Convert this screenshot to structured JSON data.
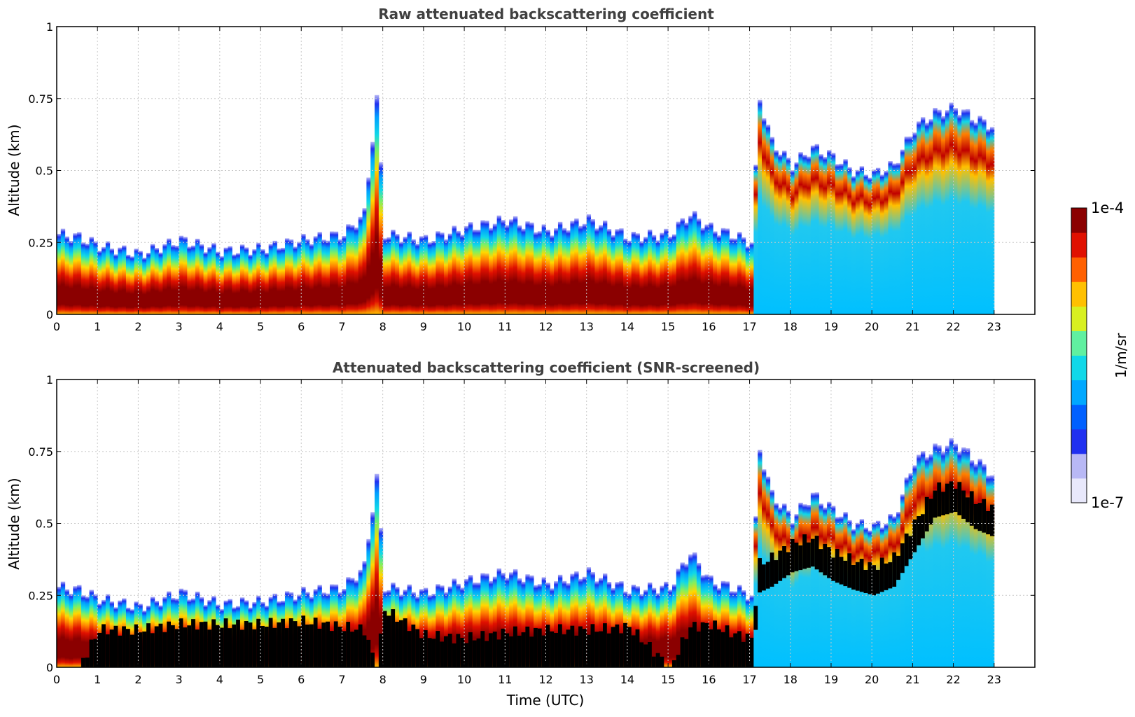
{
  "chart_data": [
    {
      "type": "heatmap",
      "title": "Raw attenuated backscattering coefficient",
      "xlabel": "",
      "ylabel": "Altitude (km)",
      "xlim": [
        0,
        24
      ],
      "ylim": [
        0,
        1
      ],
      "xticks": [
        "0",
        "1",
        "2",
        "3",
        "4",
        "5",
        "6",
        "7",
        "8",
        "9",
        "10",
        "11",
        "12",
        "13",
        "14",
        "15",
        "16",
        "17",
        "18",
        "19",
        "20",
        "21",
        "22",
        "23"
      ],
      "yticks": [
        "0",
        "0.25",
        "0.5",
        "0.75",
        "1"
      ],
      "grid": true,
      "profile": {
        "time": [
          0,
          0.5,
          1,
          2,
          3,
          4,
          5,
          6,
          7,
          7.5,
          7.8,
          8,
          9,
          10,
          11,
          12,
          13,
          14,
          15,
          15.5,
          16,
          16.5,
          17,
          17.2,
          17.5,
          18,
          18.5,
          19,
          19.5,
          20,
          20.5,
          21,
          21.5,
          22,
          22.5,
          23
        ],
        "signal_top_km": [
          0.28,
          0.27,
          0.24,
          0.21,
          0.26,
          0.22,
          0.23,
          0.26,
          0.28,
          0.35,
          0.75,
          0.28,
          0.26,
          0.3,
          0.33,
          0.29,
          0.33,
          0.27,
          0.28,
          0.35,
          0.3,
          0.28,
          0.25,
          0.75,
          0.6,
          0.52,
          0.58,
          0.55,
          0.5,
          0.49,
          0.52,
          0.65,
          0.7,
          0.72,
          0.68,
          0.65
        ],
        "max_backscatter_layer_km": [
          0.02,
          0.05,
          0.08,
          0.08,
          0.08,
          0.09,
          0.09,
          0.1,
          0.12,
          0.15,
          0.4,
          0.1,
          0.08,
          0.08,
          0.07,
          0.08,
          0.08,
          0.08,
          0.05,
          0.1,
          0.1,
          0.08,
          0.05,
          0.38,
          0.4,
          0.42,
          0.45,
          0.4,
          0.37,
          0.35,
          0.38,
          0.5,
          0.58,
          0.6,
          0.55,
          0.52
        ]
      }
    },
    {
      "type": "heatmap",
      "title": "Attenuated backscattering coefficient (SNR-screened)",
      "xlabel": "Time (UTC)",
      "ylabel": "Altitude (km)",
      "xlim": [
        0,
        24
      ],
      "ylim": [
        0,
        1
      ],
      "xticks": [
        "0",
        "1",
        "2",
        "3",
        "4",
        "5",
        "6",
        "7",
        "8",
        "9",
        "10",
        "11",
        "12",
        "13",
        "14",
        "15",
        "16",
        "17",
        "18",
        "19",
        "20",
        "21",
        "22",
        "23"
      ],
      "yticks": [
        "0",
        "0.25",
        "0.5",
        "0.75",
        "1"
      ],
      "grid": true,
      "profile": {
        "time": [
          0,
          0.5,
          1,
          2,
          3,
          4,
          5,
          6,
          7,
          7.5,
          7.8,
          8,
          9,
          10,
          11,
          12,
          13,
          14,
          15,
          15.5,
          16,
          16.5,
          17,
          17.2,
          17.5,
          18,
          18.5,
          19,
          19.5,
          20,
          20.5,
          21,
          21.5,
          22,
          22.5,
          23
        ],
        "signal_top_km": [
          0.28,
          0.27,
          0.24,
          0.21,
          0.26,
          0.22,
          0.23,
          0.26,
          0.28,
          0.35,
          0.66,
          0.28,
          0.26,
          0.3,
          0.33,
          0.29,
          0.33,
          0.27,
          0.28,
          0.4,
          0.3,
          0.28,
          0.25,
          0.76,
          0.6,
          0.52,
          0.6,
          0.55,
          0.5,
          0.49,
          0.52,
          0.72,
          0.76,
          0.78,
          0.72,
          0.66
        ],
        "screened_core_km": [
          0,
          0,
          0.13,
          0.13,
          0.15,
          0.15,
          0.15,
          0.16,
          0.14,
          0.13,
          0,
          0.2,
          0.11,
          0.1,
          0.12,
          0.13,
          0.13,
          0.14,
          0,
          0.14,
          0.15,
          0.12,
          0.1,
          0.36,
          0.38,
          0.43,
          0.45,
          0.4,
          0.37,
          0.35,
          0.38,
          0.5,
          0.62,
          0.64,
          0.58,
          0.55
        ]
      }
    }
  ],
  "colorbar": {
    "label": "1/m/sr",
    "max_label": "1e-4",
    "min_label": "1e-7",
    "colors": [
      "#e8e8fb",
      "#b8b8f5",
      "#2030f0",
      "#0060ff",
      "#00a8ff",
      "#10d8e8",
      "#60f0a0",
      "#d8f020",
      "#ffc000",
      "#ff6000",
      "#e01000",
      "#8b0000"
    ]
  },
  "colors": {
    "screened": "#000000",
    "grid": "#c8c8c8",
    "title": "#404040"
  }
}
